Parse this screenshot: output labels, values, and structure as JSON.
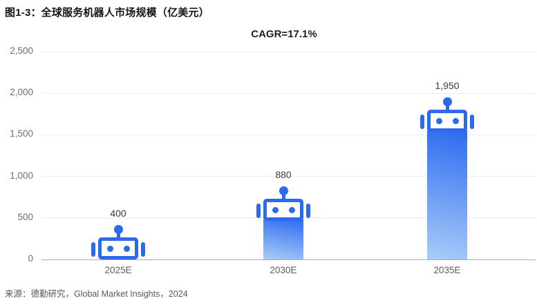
{
  "header": {
    "title": "图1-3：全球服务机器人市场规模（亿美元）"
  },
  "annotation": {
    "cagr": "CAGR=17.1%"
  },
  "footer": {
    "source": "来源：德勤研究，Global Market Insights，2024"
  },
  "colors": {
    "robot_blue": "#2B69F0",
    "body_gradient_top": "#2C6BEF",
    "body_gradient_bottom": "#AACCF9",
    "gridline": "#ECECEC",
    "baseline": "#ACACAC",
    "y_tick_text": "#6E6E6E",
    "x_tick_text": "#5C5C5C",
    "value_text": "#3B3B3B",
    "title_text": "#141414"
  },
  "chart_data": {
    "type": "bar",
    "title": "全球服务机器人市场规模（亿美元）",
    "subtitle": "CAGR=17.1%",
    "categories": [
      "2025E",
      "2030E",
      "2035E"
    ],
    "values": [
      400,
      880,
      1950
    ],
    "value_labels": [
      "400",
      "880",
      "1,950"
    ],
    "xlabel": "",
    "ylabel": "",
    "ylim": [
      0,
      2500
    ],
    "yticks": [
      0,
      500,
      1000,
      1500,
      2000,
      2500
    ],
    "ytick_labels": [
      "0",
      "500",
      "1,000",
      "1,500",
      "2,000",
      "2,500"
    ],
    "grid": "horizontal",
    "legend": "none",
    "bar_style": "robot-icon"
  }
}
